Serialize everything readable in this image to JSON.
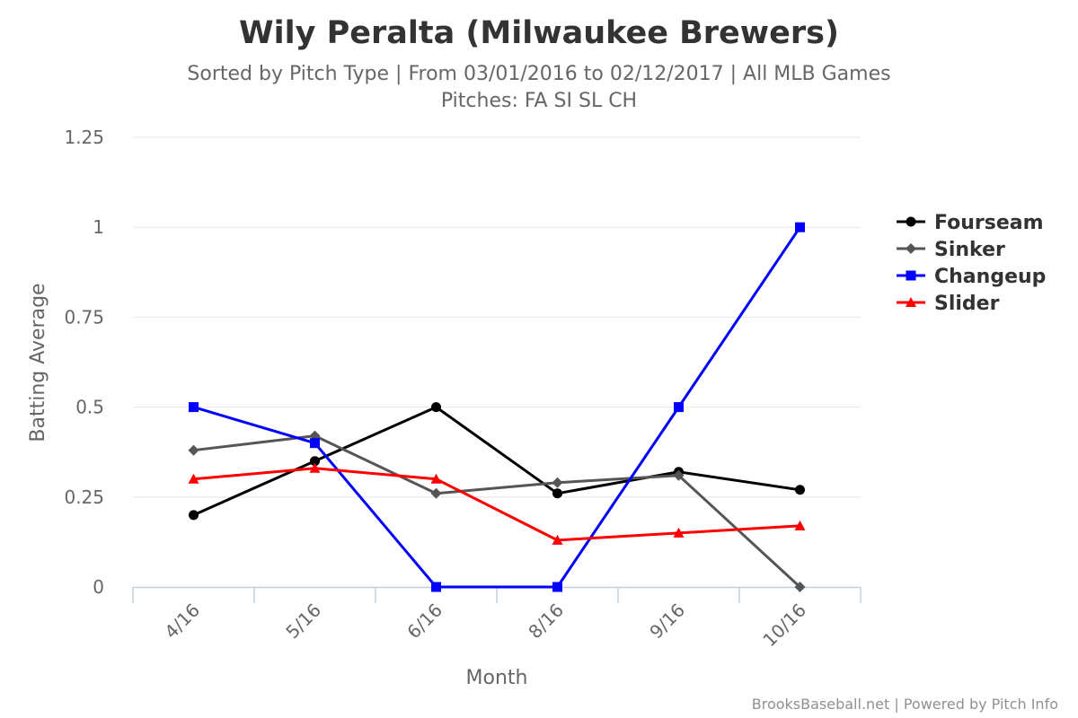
{
  "chart_data": {
    "type": "line",
    "title": "Wily Peralta (Milwaukee Brewers)",
    "subtitle_line1": "Sorted by Pitch Type | From 03/01/2016 to 02/12/2017 | All MLB Games",
    "subtitle_line2": "Pitches: FA SI SL CH",
    "xlabel": "Month",
    "ylabel": "Batting Average",
    "categories": [
      "4/16",
      "5/16",
      "6/16",
      "8/16",
      "9/16",
      "10/16"
    ],
    "ylim": [
      0,
      1.25
    ],
    "yticks": [
      "0",
      "0.25",
      "0.5",
      "0.75",
      "1",
      "1.25"
    ],
    "grid": true,
    "legend_position": "right",
    "series": [
      {
        "name": "Fourseam",
        "color": "#000000",
        "marker": "circle",
        "values": [
          0.2,
          0.35,
          0.5,
          0.26,
          0.32,
          0.27
        ]
      },
      {
        "name": "Sinker",
        "color": "#555555",
        "marker": "diamond",
        "values": [
          0.38,
          0.42,
          0.26,
          0.29,
          0.31,
          0.0
        ]
      },
      {
        "name": "Changeup",
        "color": "#0000ff",
        "marker": "square",
        "values": [
          0.5,
          0.4,
          0.0,
          0.0,
          0.5,
          1.0
        ]
      },
      {
        "name": "Slider",
        "color": "#ff0000",
        "marker": "triangle",
        "values": [
          0.3,
          0.33,
          0.3,
          0.13,
          0.15,
          0.17
        ]
      }
    ]
  },
  "credits": "BrooksBaseball.net | Powered by Pitch Info"
}
